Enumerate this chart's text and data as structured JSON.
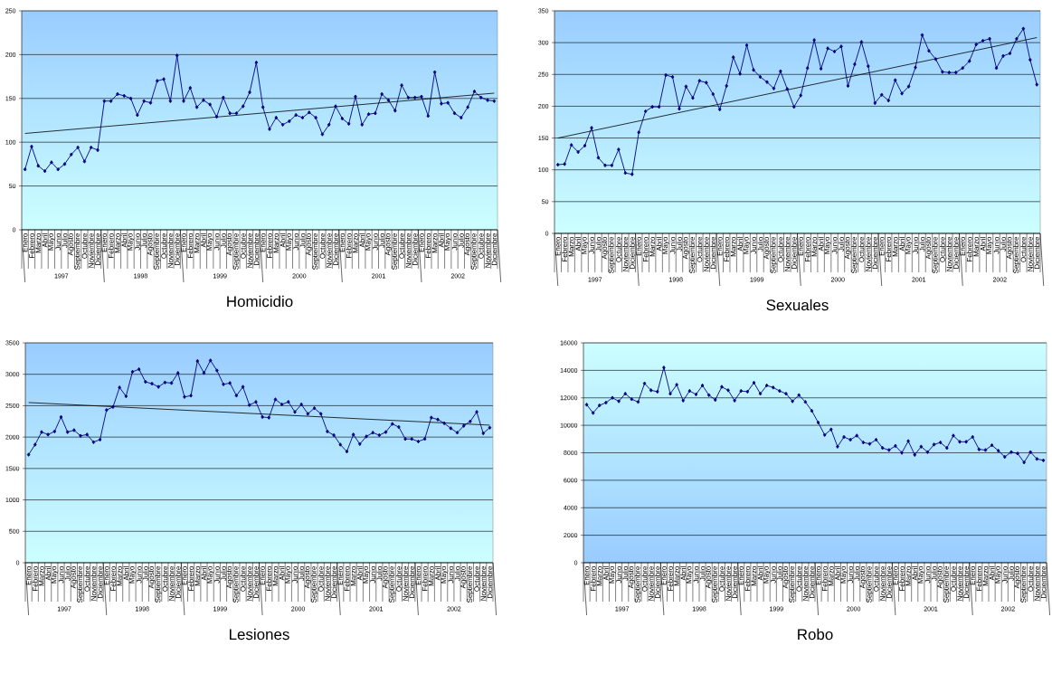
{
  "chart_data": [
    {
      "type": "line",
      "title": "Homicidio",
      "ylim": [
        0,
        250
      ],
      "yticks": [
        0,
        50,
        100,
        150,
        200,
        250
      ],
      "grid": "y",
      "marker": "diamond",
      "categories": [
        "Enero",
        "Febrero",
        "Marzo",
        "Abril",
        "Mayo",
        "Junio",
        "Julio",
        "Agosto",
        "Septiembre",
        "Octubre",
        "Noviembre",
        "Diciembre",
        "Enero",
        "Febrero",
        "Marzo",
        "Abril",
        "Mayo",
        "Junio",
        "Julio",
        "Agosto",
        "Septiembre",
        "Octubre",
        "Noviembre",
        "Diciembre",
        "Enero",
        "Febrero",
        "Marzo",
        "Abril",
        "Mayo",
        "Junio",
        "Julio",
        "Agosto",
        "Septiembre",
        "Octubre",
        "Noviembre",
        "Diciembre",
        "Enero",
        "Febrero",
        "Marzo",
        "Abril",
        "Mayo",
        "Junio",
        "Julio",
        "Agosto",
        "Septiembre",
        "Octubre",
        "Noviembre",
        "Diciembre",
        "Enero",
        "Febrero",
        "Marzo",
        "Abril",
        "Mayo",
        "Junio",
        "Julio",
        "Agosto",
        "Septiembre",
        "Octubre",
        "Noviembre",
        "Diciembre",
        "Enero",
        "Febrero",
        "Marzo",
        "Abril",
        "Mayo",
        "Junio",
        "Julio",
        "Agosto",
        "Septiembre",
        "Octubre",
        "Noviembre",
        "Diciembre"
      ],
      "annotations": [
        "1997",
        "1998",
        "1999",
        "2000",
        "2001",
        "2002"
      ],
      "series": [
        {
          "color": "#000080",
          "values": [
            69,
            95,
            73,
            67,
            77,
            69,
            75,
            86,
            94,
            78,
            94,
            91,
            147,
            147,
            155,
            153,
            150,
            131,
            147,
            145,
            170,
            172,
            147,
            199,
            147,
            162,
            140,
            148,
            143,
            129,
            151,
            133,
            133,
            141,
            157,
            191,
            140,
            115,
            128,
            120,
            124,
            131,
            128,
            134,
            128,
            109,
            120,
            141,
            127,
            121,
            152,
            120,
            132,
            133,
            155,
            148,
            136,
            165,
            151,
            151,
            152,
            130,
            180,
            144,
            145,
            133,
            128,
            140,
            158,
            151,
            148,
            147
          ]
        },
        {
          "type": "line",
          "color": "#000000",
          "marker": "none",
          "values": [
            110,
            null,
            null,
            null,
            null,
            null,
            null,
            null,
            null,
            null,
            null,
            null,
            null,
            null,
            null,
            null,
            null,
            null,
            null,
            null,
            null,
            null,
            null,
            null,
            null,
            null,
            null,
            null,
            null,
            null,
            null,
            null,
            null,
            null,
            null,
            null,
            null,
            null,
            null,
            null,
            null,
            null,
            null,
            null,
            null,
            null,
            null,
            null,
            null,
            null,
            null,
            null,
            null,
            null,
            null,
            null,
            null,
            null,
            null,
            null,
            null,
            null,
            null,
            null,
            null,
            null,
            null,
            null,
            null,
            null,
            null,
            156
          ]
        }
      ]
    },
    {
      "type": "line",
      "title": "Sexuales",
      "ylim": [
        0,
        350
      ],
      "yticks": [
        0,
        50,
        100,
        150,
        200,
        250,
        300,
        350
      ],
      "grid": "y",
      "marker": "diamond",
      "categories": [
        "Enero",
        "Febrero",
        "Marzo",
        "Abril",
        "Mayo",
        "Junio",
        "Julio",
        "Agosto",
        "Septiembre",
        "Octubre",
        "Noviembre",
        "Diciembre",
        "Enero",
        "Febrero",
        "Marzo",
        "Abril",
        "Mayo",
        "Junio",
        "Julio",
        "Agosto",
        "Septiembre",
        "Octubre",
        "Noviembre",
        "Diciembre",
        "Enero",
        "Febrero",
        "Marzo",
        "Abril",
        "Mayo",
        "Junio",
        "Julio",
        "Agosto",
        "Septiembre",
        "Octubre",
        "Noviembre",
        "Diciembre",
        "Enero",
        "Febrero",
        "Marzo",
        "Abril",
        "Mayo",
        "Junio",
        "Julio",
        "Agosto",
        "Septiembre",
        "Octubre",
        "Noviembre",
        "Diciembre",
        "Enero",
        "Febrero",
        "Marzo",
        "Abril",
        "Mayo",
        "Junio",
        "Julio",
        "Agosto",
        "Septiembre",
        "Octubre",
        "Noviembre",
        "Diciembre",
        "Enero",
        "Febrero",
        "Marzo",
        "Abril",
        "Mayo",
        "Junio",
        "Julio",
        "Agosto",
        "Septiembre",
        "Octubre",
        "Noviembre",
        "Diciembre"
      ],
      "annotations": [
        "1997",
        "1998",
        "1999",
        "2000",
        "2001",
        "2002"
      ],
      "series": [
        {
          "color": "#000080",
          "values": [
            108,
            109,
            139,
            128,
            138,
            166,
            119,
            107,
            107,
            132,
            95,
            93,
            159,
            192,
            199,
            199,
            249,
            246,
            196,
            231,
            213,
            240,
            237,
            219,
            195,
            232,
            277,
            251,
            296,
            257,
            246,
            238,
            228,
            255,
            227,
            199,
            217,
            260,
            304,
            259,
            291,
            286,
            294,
            232,
            266,
            301,
            263,
            205,
            218,
            209,
            241,
            220,
            231,
            261,
            312,
            287,
            274,
            254,
            253,
            253,
            260,
            271,
            297,
            303,
            306,
            260,
            279,
            283,
            306,
            322,
            273,
            234
          ]
        },
        {
          "type": "line",
          "color": "#000000",
          "marker": "none",
          "values": [
            150,
            null,
            null,
            null,
            null,
            null,
            null,
            null,
            null,
            null,
            null,
            null,
            null,
            null,
            null,
            null,
            null,
            null,
            null,
            null,
            null,
            null,
            null,
            null,
            null,
            null,
            null,
            null,
            null,
            null,
            null,
            null,
            null,
            null,
            null,
            null,
            null,
            null,
            null,
            null,
            null,
            null,
            null,
            null,
            null,
            null,
            null,
            null,
            null,
            null,
            null,
            null,
            null,
            null,
            null,
            null,
            null,
            null,
            null,
            null,
            null,
            null,
            null,
            null,
            null,
            null,
            null,
            null,
            null,
            null,
            null,
            308
          ]
        }
      ]
    },
    {
      "type": "line",
      "title": "Lesiones",
      "ylim": [
        0,
        3500
      ],
      "yticks": [
        0,
        500,
        1000,
        1500,
        2000,
        2500,
        3000,
        3500
      ],
      "grid": "y",
      "marker": "diamond",
      "categories": [
        "Enero",
        "Febrero",
        "Marzo",
        "Abril",
        "Mayo",
        "Junio",
        "Julio",
        "Agosto",
        "Septiembre",
        "Octubre",
        "Noviembre",
        "Diciembre",
        "Enero",
        "Febrero",
        "Marzo",
        "Abril",
        "Mayo",
        "Junio",
        "Julio",
        "Agosto",
        "Septiembre",
        "Octubre",
        "Noviembre",
        "Diciembre",
        "Enero",
        "Febrero",
        "Marzo",
        "Abril",
        "Mayo",
        "Junio",
        "Julio",
        "Agosto",
        "Septiembre",
        "Octubre",
        "Noviembre",
        "Diciembre",
        "Enero",
        "Febrero",
        "Marzo",
        "Abril",
        "Mayo",
        "Junio",
        "Julio",
        "Agosto",
        "Septiembre",
        "Octubre",
        "Noviembre",
        "Diciembre",
        "Enero",
        "Febrero",
        "Marzo",
        "Abril",
        "Mayo",
        "Junio",
        "Julio",
        "Agosto",
        "Septiembre",
        "Octubre",
        "Noviembre",
        "Diciembre",
        "Enero",
        "Febrero",
        "Marzo",
        "Abril",
        "Mayo",
        "Junio",
        "Julio",
        "Agosto",
        "Septiembre",
        "Octubre",
        "Noviembre",
        "Diciembre"
      ],
      "annotations": [
        "1997",
        "1998",
        "1999",
        "2000",
        "2001",
        "2002"
      ],
      "series": [
        {
          "color": "#000080",
          "values": [
            1720,
            1880,
            2080,
            2040,
            2090,
            2320,
            2080,
            2110,
            2020,
            2040,
            1920,
            1960,
            2430,
            2480,
            2790,
            2650,
            3040,
            3080,
            2880,
            2850,
            2800,
            2870,
            2860,
            3020,
            2640,
            2660,
            3210,
            3020,
            3220,
            3060,
            2840,
            2860,
            2660,
            2800,
            2510,
            2560,
            2320,
            2310,
            2600,
            2520,
            2560,
            2400,
            2520,
            2370,
            2460,
            2370,
            2090,
            2030,
            1880,
            1770,
            2040,
            1890,
            2010,
            2070,
            2030,
            2080,
            2210,
            2160,
            1970,
            1970,
            1930,
            1970,
            2310,
            2280,
            2220,
            2140,
            2070,
            2180,
            2250,
            2400,
            2060,
            2150
          ]
        },
        {
          "type": "line",
          "color": "#000000",
          "marker": "none",
          "values": [
            2550,
            null,
            null,
            null,
            null,
            null,
            null,
            null,
            null,
            null,
            null,
            null,
            null,
            null,
            null,
            null,
            null,
            null,
            null,
            null,
            null,
            null,
            null,
            null,
            null,
            null,
            null,
            null,
            null,
            null,
            null,
            null,
            null,
            null,
            null,
            null,
            null,
            null,
            null,
            null,
            null,
            null,
            null,
            null,
            null,
            null,
            null,
            null,
            null,
            null,
            null,
            null,
            null,
            null,
            null,
            null,
            null,
            null,
            null,
            null,
            null,
            null,
            null,
            null,
            null,
            null,
            null,
            null,
            null,
            null,
            null,
            2190
          ]
        }
      ]
    },
    {
      "type": "line",
      "title": "Robo",
      "ylim": [
        0,
        16000
      ],
      "yticks": [
        0,
        2000,
        4000,
        6000,
        8000,
        10000,
        12000,
        14000,
        16000
      ],
      "grid": "y",
      "marker": "diamond",
      "categories": [
        "Enero",
        "Febrero",
        "Marzo",
        "Abril",
        "Mayo",
        "Junio",
        "Julio",
        "Agosto",
        "Septiembre",
        "Octubre",
        "Noviembre",
        "Diciembre",
        "Enero",
        "Febrero",
        "Marzo",
        "Abril",
        "Mayo",
        "Junio",
        "Julio",
        "Agosto",
        "Septiembre",
        "Octubre",
        "Noviembre",
        "Diciembre",
        "Enero",
        "Febrero",
        "Marzo",
        "Abril",
        "Mayo",
        "Junio",
        "Julio",
        "Agosto",
        "Septiembre",
        "Octubre",
        "Noviembre",
        "Diciembre",
        "Enero",
        "Febrero",
        "Marzo",
        "Abril",
        "Mayo",
        "Junio",
        "Julio",
        "Agosto",
        "Septiembre",
        "Octubre",
        "Noviembre",
        "Diciembre",
        "Enero",
        "Febrero",
        "Marzo",
        "Abril",
        "Mayo",
        "Junio",
        "Julio",
        "Agosto",
        "Septiembre",
        "Octubre",
        "Noviembre",
        "Diciembre",
        "Enero",
        "Febrero",
        "Marzo",
        "Abril",
        "Mayo",
        "Junio",
        "Julio",
        "Agosto",
        "Septiembre",
        "Octubre",
        "Noviembre",
        "Diciembre"
      ],
      "annotations": [
        "1997",
        "1998",
        "1999",
        "2000",
        "2001",
        "2002"
      ],
      "series": [
        {
          "color": "#000080",
          "values": [
            11500,
            10900,
            11450,
            11650,
            12000,
            11750,
            12300,
            11900,
            11700,
            13050,
            12550,
            12450,
            14200,
            12300,
            12950,
            11800,
            12500,
            12250,
            12900,
            12200,
            11850,
            12800,
            12550,
            11800,
            12500,
            12450,
            13100,
            12300,
            12900,
            12750,
            12500,
            12300,
            11750,
            12200,
            11700,
            11050,
            10200,
            9300,
            9700,
            8450,
            9150,
            8950,
            9250,
            8750,
            8650,
            8950,
            8350,
            8200,
            8500,
            8000,
            8850,
            7850,
            8450,
            8050,
            8600,
            8750,
            8350,
            9250,
            8800,
            8800,
            9150,
            8250,
            8200,
            8550,
            8150,
            7700,
            8050,
            7950,
            7300,
            8050,
            7550,
            7450
          ]
        }
      ]
    }
  ]
}
